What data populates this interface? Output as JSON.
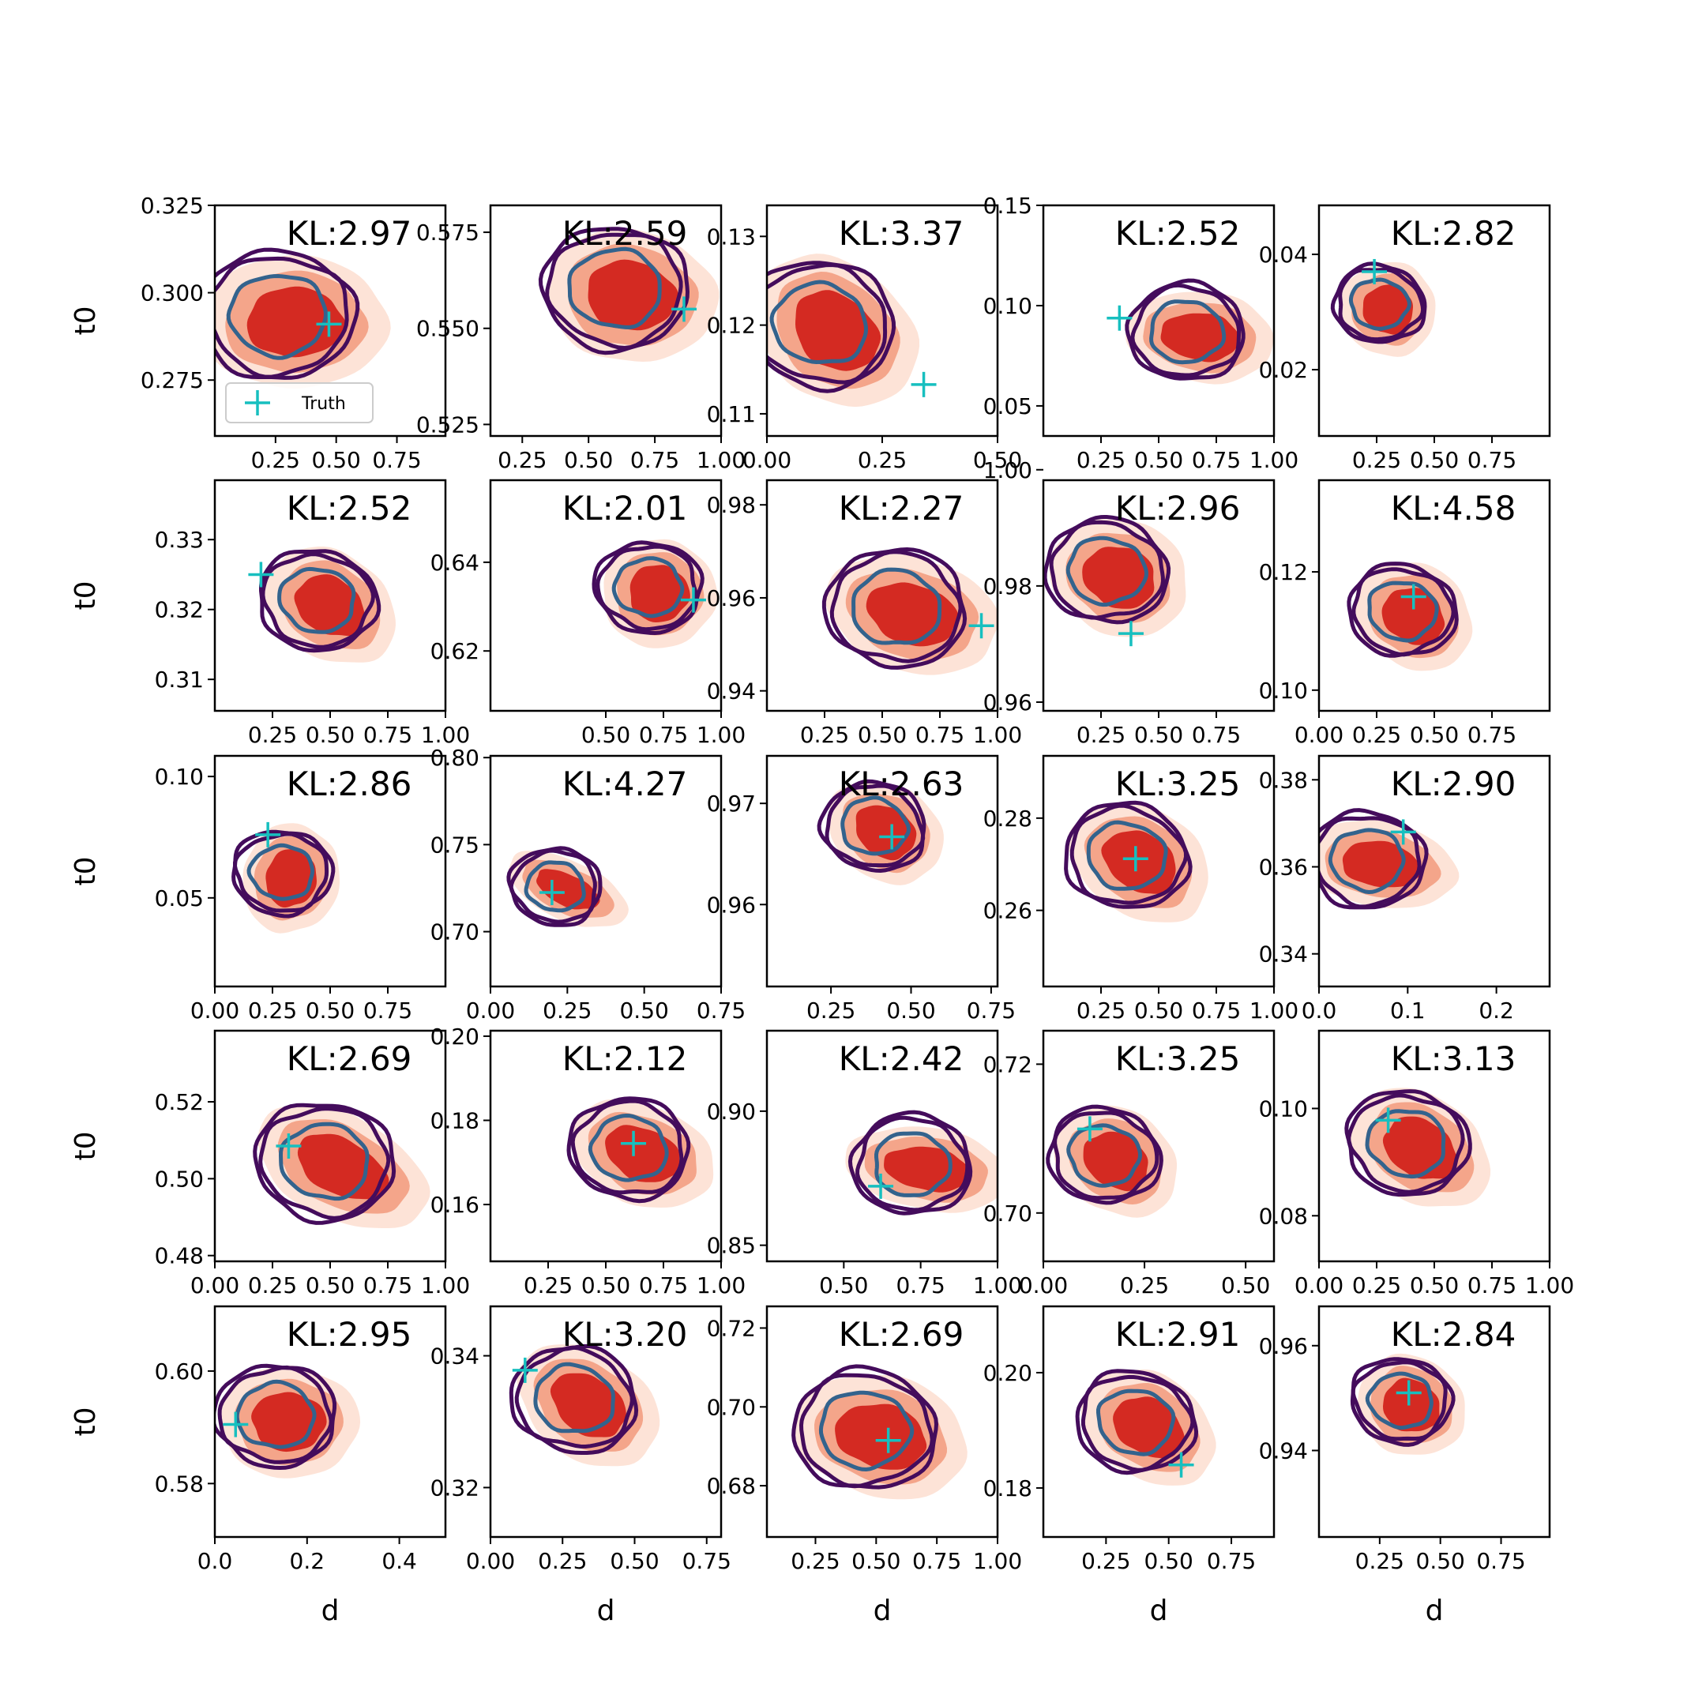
{
  "chart_data": {
    "type": "contour-grid",
    "rows": 5,
    "cols": 5,
    "ylabel": "t0",
    "xlabel": "d",
    "legend": {
      "label": "Truth",
      "placement": "lower-left",
      "panel": 0
    },
    "colors": {
      "marker": "#17bfbf",
      "contour_outer": "#440c5c",
      "contour_inner": "#33638d",
      "fill_dark": "#d42a22",
      "fill_mid": "#f4a58a",
      "fill_light": "#fde3d7"
    },
    "panels": [
      {
        "kl": "KL:2.97",
        "xlim": [
          0.0,
          0.95
        ],
        "ylim": [
          0.259,
          0.325
        ],
        "xticks": [
          0.25,
          0.5,
          0.75
        ],
        "xtick_labels": [
          "0.25",
          "0.50",
          "0.75"
        ],
        "yticks": [
          0.275,
          0.3,
          0.325
        ],
        "ytick_labels": [
          "0.275",
          "0.300",
          "0.325"
        ],
        "truth": [
          0.47,
          0.291
        ],
        "blob": {
          "cx": 0.33,
          "cy": 0.2915,
          "sx": 0.2,
          "sy": 0.0105,
          "rho": 0.0
        }
      },
      {
        "kl": "KL:2.59",
        "xlim": [
          0.13,
          1.0
        ],
        "ylim": [
          0.522,
          0.582
        ],
        "xticks": [
          0.25,
          0.5,
          0.75,
          1.0
        ],
        "xtick_labels": [
          "0.25",
          "0.50",
          "0.75",
          "1.00"
        ],
        "yticks": [
          0.525,
          0.55,
          0.575
        ],
        "ytick_labels": [
          "0.525",
          "0.550",
          "0.575"
        ],
        "truth": [
          0.86,
          0.555
        ],
        "blob": {
          "cx": 0.66,
          "cy": 0.5585,
          "sx": 0.17,
          "sy": 0.0095,
          "rho": -0.2
        }
      },
      {
        "kl": "KL:3.37",
        "xlim": [
          0.0,
          0.5
        ],
        "ylim": [
          0.1075,
          0.1335
        ],
        "xticks": [
          0.0,
          0.25,
          0.5
        ],
        "xtick_labels": [
          "0.00",
          "0.25",
          "0.50"
        ],
        "yticks": [
          0.11,
          0.12,
          0.13
        ],
        "ytick_labels": [
          "0.11",
          "0.12",
          "0.13"
        ],
        "truth": [
          0.34,
          0.1133
        ],
        "blob": {
          "cx": 0.15,
          "cy": 0.1193,
          "sx": 0.1,
          "sy": 0.0042,
          "rho": -0.85
        }
      },
      {
        "kl": "KL:2.52",
        "xlim": [
          0.0,
          1.0
        ],
        "ylim": [
          0.035,
          0.15
        ],
        "xticks": [
          0.25,
          0.5,
          0.75,
          1.0
        ],
        "xtick_labels": [
          "0.25",
          "0.50",
          "0.75",
          "1.00"
        ],
        "yticks": [
          0.05,
          0.1,
          0.15
        ],
        "ytick_labels": [
          "0.05",
          "0.10",
          "0.15"
        ],
        "truth": [
          0.33,
          0.0938
        ],
        "blob": {
          "cx": 0.68,
          "cy": 0.0845,
          "sx": 0.17,
          "sy": 0.0125,
          "rho": -0.15
        }
      },
      {
        "kl": "KL:2.82",
        "xlim": [
          0.0,
          1.0
        ],
        "ylim": [
          0.0085,
          0.0485
        ],
        "xticks": [
          0.25,
          0.5,
          0.75
        ],
        "xtick_labels": [
          "0.25",
          "0.50",
          "0.75"
        ],
        "yticks": [
          0.02,
          0.04
        ],
        "ytick_labels": [
          "0.02",
          "0.04"
        ],
        "truth": [
          0.24,
          0.037
        ],
        "blob": {
          "cx": 0.3,
          "cy": 0.0305,
          "sx": 0.11,
          "sy": 0.0045,
          "rho": -0.55
        }
      },
      {
        "kl": "KL:2.52",
        "xlim": [
          0.0,
          1.0
        ],
        "ylim": [
          0.3055,
          0.3385
        ],
        "xticks": [
          0.25,
          0.5,
          0.75,
          1.0
        ],
        "xtick_labels": [
          "0.25",
          "0.50",
          "0.75",
          "1.00"
        ],
        "yticks": [
          0.31,
          0.32,
          0.33
        ],
        "ytick_labels": [
          "0.31",
          "0.32",
          "0.33"
        ],
        "truth": [
          0.2,
          0.325
        ],
        "blob": {
          "cx": 0.5,
          "cy": 0.3205,
          "sx": 0.16,
          "sy": 0.0042,
          "rho": -0.7
        }
      },
      {
        "kl": "KL:2.01",
        "xlim": [
          0.0,
          1.0
        ],
        "ylim": [
          0.6065,
          0.6585
        ],
        "xticks": [
          0.5,
          0.75,
          1.0
        ],
        "xtick_labels": [
          "0.50",
          "0.75",
          "1.00"
        ],
        "yticks": [
          0.62,
          0.64
        ],
        "ytick_labels": [
          "0.62",
          "0.64"
        ],
        "truth": [
          0.88,
          0.6315
        ],
        "blob": {
          "cx": 0.73,
          "cy": 0.633,
          "sx": 0.13,
          "sy": 0.0068,
          "rho": -0.25
        }
      },
      {
        "kl": "KL:2.27",
        "xlim": [
          0.0,
          1.0
        ],
        "ylim": [
          0.9357,
          0.9853
        ],
        "xticks": [
          0.25,
          0.5,
          0.75,
          1.0
        ],
        "xtick_labels": [
          "0.25",
          "0.50",
          "0.75",
          "1.00"
        ],
        "yticks": [
          0.94,
          0.96,
          0.98
        ],
        "ytick_labels": [
          "0.94",
          "0.96",
          "0.98"
        ],
        "truth": [
          0.93,
          0.954
        ],
        "blob": {
          "cx": 0.63,
          "cy": 0.9565,
          "sx": 0.2,
          "sy": 0.0068,
          "rho": -0.35
        }
      },
      {
        "kl": "KL:2.96",
        "xlim": [
          0.0,
          1.0
        ],
        "ylim": [
          0.9585,
          0.9982
        ],
        "xticks": [
          0.25,
          0.5,
          0.75
        ],
        "xtick_labels": [
          "0.25",
          "0.50",
          "0.75"
        ],
        "yticks": [
          0.96,
          0.98,
          1.0
        ],
        "ytick_labels": [
          "0.96",
          "0.98",
          "1.00"
        ],
        "truth": [
          0.38,
          0.9718
        ],
        "blob": {
          "cx": 0.33,
          "cy": 0.9815,
          "sx": 0.16,
          "sy": 0.0055,
          "rho": -0.45
        }
      },
      {
        "kl": "KL:4.58",
        "xlim": [
          0.0,
          1.0
        ],
        "ylim": [
          0.0965,
          0.1355
        ],
        "xticks": [
          0.0,
          0.25,
          0.5,
          0.75
        ],
        "xtick_labels": [
          "0.00",
          "0.25",
          "0.50",
          "0.75"
        ],
        "yticks": [
          0.1,
          0.12
        ],
        "ytick_labels": [
          "0.10",
          "0.12"
        ],
        "truth": [
          0.41,
          0.1158
        ],
        "blob": {
          "cx": 0.41,
          "cy": 0.1125,
          "sx": 0.14,
          "sy": 0.0048,
          "rho": -0.7
        }
      },
      {
        "kl": "KL:2.86",
        "xlim": [
          0.0,
          1.0
        ],
        "ylim": [
          0.0135,
          0.1085
        ],
        "xticks": [
          0.0,
          0.25,
          0.5,
          0.75
        ],
        "xtick_labels": [
          "0.00",
          "0.25",
          "0.50",
          "0.75"
        ],
        "yticks": [
          0.05,
          0.1
        ],
        "ytick_labels": [
          "0.05",
          "0.10"
        ],
        "truth": [
          0.23,
          0.076
        ],
        "blob": {
          "cx": 0.33,
          "cy": 0.058,
          "sx": 0.11,
          "sy": 0.0125,
          "rho": -0.25
        }
      },
      {
        "kl": "KL:4.27",
        "xlim": [
          0.0,
          0.75
        ],
        "ylim": [
          0.6685,
          0.801
        ],
        "xticks": [
          0.0,
          0.25,
          0.5,
          0.75
        ],
        "xtick_labels": [
          "0.00",
          "0.25",
          "0.50",
          "0.75"
        ],
        "yticks": [
          0.7,
          0.75,
          0.8
        ],
        "ytick_labels": [
          "0.70",
          "0.75",
          "0.80"
        ],
        "truth": [
          0.2,
          0.7225
        ],
        "blob": {
          "cx": 0.25,
          "cy": 0.724,
          "sx": 0.11,
          "sy": 0.0095,
          "rho": -0.55
        }
      },
      {
        "kl": "KL:2.63",
        "xlim": [
          0.05,
          0.77
        ],
        "ylim": [
          0.9519,
          0.9747
        ],
        "xticks": [
          0.25,
          0.5,
          0.75
        ],
        "xtick_labels": [
          "0.25",
          "0.50",
          "0.75"
        ],
        "yticks": [
          0.96,
          0.97
        ],
        "ytick_labels": [
          "0.96",
          "0.97"
        ],
        "truth": [
          0.44,
          0.9667
        ],
        "blob": {
          "cx": 0.42,
          "cy": 0.9672,
          "sx": 0.1,
          "sy": 0.0026,
          "rho": -0.7
        }
      },
      {
        "kl": "KL:3.25",
        "xlim": [
          0.0,
          1.0
        ],
        "ylim": [
          0.2435,
          0.2935
        ],
        "xticks": [
          0.25,
          0.5,
          0.75,
          1.0
        ],
        "xtick_labels": [
          "0.25",
          "0.50",
          "0.75",
          "1.00"
        ],
        "yticks": [
          0.26,
          0.28
        ],
        "ytick_labels": [
          "0.26",
          "0.28"
        ],
        "truth": [
          0.4,
          0.2712
        ],
        "blob": {
          "cx": 0.42,
          "cy": 0.2705,
          "sx": 0.17,
          "sy": 0.0065,
          "rho": -0.7
        }
      },
      {
        "kl": "KL:2.90",
        "xlim": [
          0.0,
          0.26
        ],
        "ylim": [
          0.3325,
          0.3855
        ],
        "xticks": [
          0.0,
          0.1,
          0.2
        ],
        "xtick_labels": [
          "0.0",
          "0.1",
          "0.2"
        ],
        "yticks": [
          0.34,
          0.36,
          0.38
        ],
        "ytick_labels": [
          "0.34",
          "0.36",
          "0.38"
        ],
        "truth": [
          0.095,
          0.368
        ],
        "blob": {
          "cx": 0.07,
          "cy": 0.3605,
          "sx": 0.045,
          "sy": 0.0055,
          "rho": -0.2
        }
      },
      {
        "kl": "KL:2.69",
        "xlim": [
          0.0,
          1.0
        ],
        "ylim": [
          0.4785,
          0.5385
        ],
        "xticks": [
          0.0,
          0.25,
          0.5,
          0.75,
          1.0
        ],
        "xtick_labels": [
          "0.00",
          "0.25",
          "0.50",
          "0.75",
          "1.00"
        ],
        "yticks": [
          0.48,
          0.5,
          0.52
        ],
        "ytick_labels": [
          "0.48",
          "0.50",
          "0.52"
        ],
        "truth": [
          0.32,
          0.5085
        ],
        "blob": {
          "cx": 0.55,
          "cy": 0.503,
          "sx": 0.21,
          "sy": 0.0075,
          "rho": -0.6
        }
      },
      {
        "kl": "KL:2.12",
        "xlim": [
          0.0,
          1.0
        ],
        "ylim": [
          0.1465,
          0.2013
        ],
        "xticks": [
          0.25,
          0.5,
          0.75,
          1.0
        ],
        "xtick_labels": [
          "0.25",
          "0.50",
          "0.75",
          "1.00"
        ],
        "yticks": [
          0.16,
          0.18,
          0.2
        ],
        "ytick_labels": [
          "0.16",
          "0.18",
          "0.20"
        ],
        "truth": [
          0.62,
          0.1745
        ],
        "blob": {
          "cx": 0.66,
          "cy": 0.172,
          "sx": 0.17,
          "sy": 0.0065,
          "rho": -0.5
        }
      },
      {
        "kl": "KL:2.42",
        "xlim": [
          0.25,
          1.0
        ],
        "ylim": [
          0.844,
          0.93
        ],
        "xticks": [
          0.5,
          0.75,
          1.0
        ],
        "xtick_labels": [
          "0.50",
          "0.75",
          "1.00"
        ],
        "yticks": [
          0.85,
          0.9
        ],
        "ytick_labels": [
          "0.85",
          "0.90"
        ],
        "truth": [
          0.62,
          0.872
        ],
        "blob": {
          "cx": 0.77,
          "cy": 0.8785,
          "sx": 0.14,
          "sy": 0.0085,
          "rho": -0.2
        }
      },
      {
        "kl": "KL:3.25",
        "xlim": [
          0.0,
          0.57
        ],
        "ylim": [
          0.6935,
          0.7245
        ],
        "xticks": [
          0.0,
          0.25,
          0.5
        ],
        "xtick_labels": [
          "0.00",
          "0.25",
          "0.50"
        ],
        "yticks": [
          0.7,
          0.72
        ],
        "ytick_labels": [
          "0.70",
          "0.72"
        ],
        "truth": [
          0.115,
          0.7113
        ],
        "blob": {
          "cx": 0.18,
          "cy": 0.707,
          "sx": 0.085,
          "sy": 0.0038,
          "rho": -0.7
        }
      },
      {
        "kl": "KL:3.13",
        "xlim": [
          0.0,
          1.0
        ],
        "ylim": [
          0.0715,
          0.1145
        ],
        "xticks": [
          0.0,
          0.25,
          0.5,
          0.75,
          1.0
        ],
        "xtick_labels": [
          "0.00",
          "0.25",
          "0.50",
          "0.75",
          "1.00"
        ],
        "yticks": [
          0.08,
          0.1
        ],
        "ytick_labels": [
          "0.08",
          "0.10"
        ],
        "truth": [
          0.3,
          0.0978
        ],
        "blob": {
          "cx": 0.44,
          "cy": 0.0925,
          "sx": 0.17,
          "sy": 0.0055,
          "rho": -0.7
        }
      },
      {
        "kl": "KL:2.95",
        "xlim": [
          0.0,
          0.5
        ],
        "ylim": [
          0.5705,
          0.6115
        ],
        "xticks": [
          0.0,
          0.2,
          0.4
        ],
        "xtick_labels": [
          "0.0",
          "0.2",
          "0.4"
        ],
        "yticks": [
          0.58,
          0.6
        ],
        "ytick_labels": [
          "0.58",
          "0.60"
        ],
        "truth": [
          0.045,
          0.5905
        ],
        "blob": {
          "cx": 0.16,
          "cy": 0.591,
          "sx": 0.08,
          "sy": 0.0055,
          "rho": -0.1
        }
      },
      {
        "kl": "KL:3.20",
        "xlim": [
          0.0,
          0.8
        ],
        "ylim": [
          0.3125,
          0.3475
        ],
        "xticks": [
          0.0,
          0.25,
          0.5,
          0.75
        ],
        "xtick_labels": [
          "0.00",
          "0.25",
          "0.50",
          "0.75"
        ],
        "yticks": [
          0.32,
          0.34
        ],
        "ytick_labels": [
          "0.32",
          "0.34"
        ],
        "truth": [
          0.12,
          0.3378
        ],
        "blob": {
          "cx": 0.34,
          "cy": 0.3325,
          "sx": 0.14,
          "sy": 0.0045,
          "rho": -0.75
        }
      },
      {
        "kl": "KL:2.69",
        "xlim": [
          0.05,
          1.0
        ],
        "ylim": [
          0.667,
          0.7255
        ],
        "xticks": [
          0.25,
          0.5,
          0.75,
          1.0
        ],
        "xtick_labels": [
          "0.25",
          "0.50",
          "0.75",
          "1.00"
        ],
        "yticks": [
          0.68,
          0.7,
          0.72
        ],
        "ytick_labels": [
          "0.68",
          "0.70",
          "0.72"
        ],
        "truth": [
          0.55,
          0.6915
        ],
        "blob": {
          "cx": 0.52,
          "cy": 0.6925,
          "sx": 0.19,
          "sy": 0.0085,
          "rho": -0.3
        }
      },
      {
        "kl": "KL:2.91",
        "xlim": [
          0.0,
          0.92
        ],
        "ylim": [
          0.1715,
          0.2115
        ],
        "xticks": [
          0.25,
          0.5,
          0.75
        ],
        "xtick_labels": [
          "0.25",
          "0.50",
          "0.75"
        ],
        "yticks": [
          0.18,
          0.2
        ],
        "ytick_labels": [
          "0.18",
          "0.20"
        ],
        "truth": [
          0.55,
          0.184
        ],
        "blob": {
          "cx": 0.42,
          "cy": 0.1905,
          "sx": 0.15,
          "sy": 0.005,
          "rho": -0.7
        }
      },
      {
        "kl": "KL:2.84",
        "xlim": [
          0.0,
          0.95
        ],
        "ylim": [
          0.9235,
          0.9675
        ],
        "xticks": [
          0.25,
          0.5,
          0.75
        ],
        "xtick_labels": [
          "0.25",
          "0.50",
          "0.75"
        ],
        "yticks": [
          0.94,
          0.96
        ],
        "ytick_labels": [
          "0.94",
          "0.96"
        ],
        "truth": [
          0.37,
          0.951
        ],
        "blob": {
          "cx": 0.38,
          "cy": 0.9485,
          "sx": 0.12,
          "sy": 0.0052,
          "rho": -0.6
        }
      }
    ]
  }
}
